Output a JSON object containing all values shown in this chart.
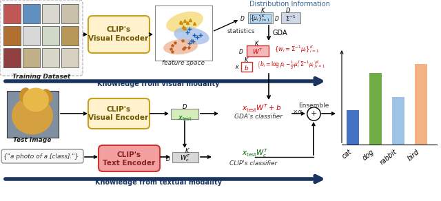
{
  "bar_categories": [
    "cat",
    "dog",
    "rabbit",
    "bird"
  ],
  "bar_values": [
    0.38,
    0.78,
    0.52,
    0.88
  ],
  "bar_colors": [
    "#4472c4",
    "#70ad47",
    "#9dc3e6",
    "#f4b183"
  ],
  "bg_color": "#ffffff",
  "clip_visual_fill": "#fff2cc",
  "clip_visual_edge": "#c8a020",
  "clip_text_fill": "#f4a0a0",
  "clip_text_edge": "#cc3333",
  "arrow_dark": "#1a3560",
  "math_red": "#cc0000",
  "math_green": "#006400",
  "dist_info_color": "#336699",
  "annot_blue": "#1a3560",
  "wt_fill": "#f4b8b8",
  "wt_edge": "#cc3333",
  "xtest_fill": "#d4edba",
  "xtest_edge": "#888888",
  "mu_fill": "#d0e8f0",
  "mu_edge": "#888888",
  "sig_fill": "#d0d8e8",
  "sig_edge": "#888888",
  "b_fill": "#f4b8b8",
  "b_edge": "#cc3333"
}
